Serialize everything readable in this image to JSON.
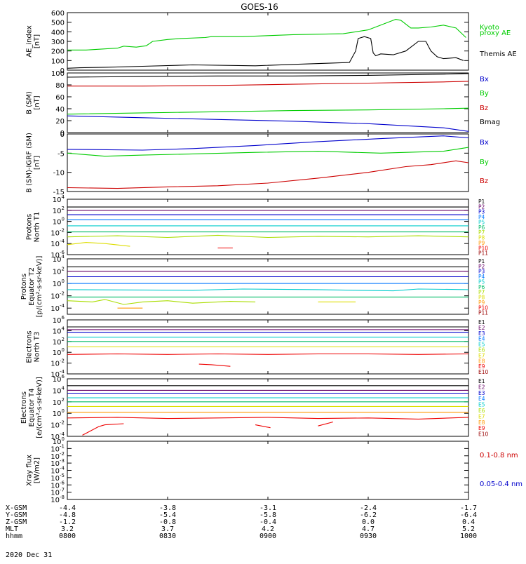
{
  "title": "GOES-16",
  "colors": {
    "black": "#000000",
    "green": "#00cc00",
    "red": "#cc0000",
    "blue": "#0000cc",
    "p1": "#000000",
    "p2": "#660066",
    "p3": "#0000cc",
    "p4": "#0077ff",
    "p5": "#00cccc",
    "p6": "#00bb66",
    "p7": "#aadd00",
    "p8": "#dddd00",
    "p9": "#ff9900",
    "p10": "#ee0000",
    "p11": "#990000"
  },
  "chart_data": [
    {
      "id": "ae",
      "type": "line",
      "ylabel_lines": [
        "AE_index",
        "[nT]"
      ],
      "ylim": [
        0,
        600
      ],
      "yticks": [
        "0",
        "100",
        "200",
        "300",
        "400",
        "500",
        "600"
      ],
      "legend": [
        "Kyoto",
        "proxy AE",
        "Themis AE"
      ],
      "series": [
        {
          "name": "Kyoto proxy AE",
          "color": "green",
          "x": [
            0,
            15,
            22,
            40,
            45,
            55,
            63,
            68,
            80,
            90,
            110,
            115,
            140,
            160,
            180,
            220,
            240,
            260,
            262,
            266,
            274,
            280,
            290,
            300,
            310,
            318
          ],
          "y": [
            210,
            210,
            215,
            230,
            250,
            240,
            255,
            300,
            320,
            330,
            340,
            350,
            350,
            360,
            370,
            380,
            420,
            520,
            530,
            520,
            440,
            440,
            450,
            470,
            440,
            340
          ]
        },
        {
          "name": "Themis AE",
          "color": "black",
          "x": [
            0,
            10,
            30,
            60,
            100,
            150,
            180,
            225,
            230,
            232,
            237,
            242,
            244,
            246,
            250,
            260,
            270,
            280,
            286,
            290,
            295,
            300,
            310,
            316
          ],
          "y": [
            20,
            25,
            30,
            40,
            55,
            45,
            60,
            80,
            200,
            330,
            350,
            330,
            180,
            150,
            170,
            160,
            200,
            300,
            300,
            200,
            140,
            120,
            130,
            100
          ]
        }
      ]
    },
    {
      "id": "bsm",
      "type": "line",
      "ylabel_lines": [
        "B (SM)",
        "[nT]"
      ],
      "ylim": [
        0,
        100
      ],
      "yticks": [
        "0",
        "20",
        "40",
        "60",
        "80",
        "100"
      ],
      "legend": [
        "Bx",
        "By",
        "Bz",
        "Bmag"
      ],
      "series": [
        {
          "name": "Bmag",
          "color": "black",
          "x": [
            0,
            60,
            120,
            180,
            240,
            300,
            320
          ],
          "y": [
            93,
            94,
            95,
            95,
            96,
            98,
            99
          ]
        },
        {
          "name": "Bx",
          "color": "blue",
          "x": [
            0,
            60,
            120,
            180,
            240,
            300,
            320
          ],
          "y": [
            28,
            25,
            22,
            19,
            15,
            8,
            2
          ]
        },
        {
          "name": "By",
          "color": "green",
          "x": [
            0,
            60,
            120,
            180,
            240,
            300,
            320
          ],
          "y": [
            31,
            33,
            35,
            37,
            38,
            40,
            41
          ]
        },
        {
          "name": "Bz",
          "color": "red",
          "x": [
            0,
            60,
            120,
            180,
            240,
            300,
            320
          ],
          "y": [
            78,
            78,
            79,
            81,
            83,
            85,
            86
          ]
        }
      ]
    },
    {
      "id": "bigrf",
      "type": "line",
      "ylabel_lines": [
        "B (SM)-IGRF (SM)",
        "[nT]"
      ],
      "ylim": [
        -15,
        0
      ],
      "yticks": [
        "-15",
        "-10",
        "-5",
        "0"
      ],
      "legend": [
        "Bx",
        "By",
        "Bz"
      ],
      "series": [
        {
          "name": "Bx",
          "color": "blue",
          "x": [
            0,
            60,
            100,
            150,
            200,
            250,
            300,
            320
          ],
          "y": [
            -4,
            -4.2,
            -3.8,
            -3,
            -2,
            -1.2,
            -0.5,
            -1
          ]
        },
        {
          "name": "By",
          "color": "green",
          "x": [
            0,
            30,
            60,
            100,
            150,
            200,
            250,
            300,
            320
          ],
          "y": [
            -5,
            -5.8,
            -5.5,
            -5.2,
            -4.8,
            -4.5,
            -5,
            -4.5,
            -3.5
          ]
        },
        {
          "name": "Bz",
          "color": "red",
          "x": [
            0,
            40,
            80,
            120,
            160,
            200,
            240,
            270,
            290,
            310,
            320
          ],
          "y": [
            -14,
            -14.2,
            -13.8,
            -13.5,
            -12.8,
            -11.5,
            -10,
            -8.5,
            -8,
            -7,
            -7.5
          ]
        }
      ]
    },
    {
      "id": "pt1",
      "type": "line",
      "scale": "log",
      "ylabel_lines": [
        "Protons",
        "North T1"
      ],
      "ylim_exp": [
        -6,
        4
      ],
      "yticks_exp": [
        -6,
        -4,
        -2,
        0,
        2,
        4
      ],
      "legend": [
        "P1",
        "P2",
        "P3",
        "P4",
        "P5",
        "P6",
        "P7",
        "P8",
        "P9",
        "P10",
        "P11"
      ],
      "series": [
        {
          "name": "P1",
          "color": "p1",
          "x": [
            0,
            320
          ],
          "y": [
            2.6,
            2.6
          ]
        },
        {
          "name": "P2",
          "color": "p2",
          "x": [
            0,
            320
          ],
          "y": [
            2.0,
            2.0
          ]
        },
        {
          "name": "P3",
          "color": "p3",
          "x": [
            0,
            320
          ],
          "y": [
            1.2,
            1.2
          ]
        },
        {
          "name": "P4",
          "color": "p4",
          "x": [
            0,
            320
          ],
          "y": [
            0.3,
            0.3
          ]
        },
        {
          "name": "P5",
          "color": "p5",
          "x": [
            0,
            320
          ],
          "y": [
            -0.8,
            -0.8
          ]
        },
        {
          "name": "P6",
          "color": "p6",
          "x": [
            0,
            320
          ],
          "y": [
            -1.9,
            -1.9
          ]
        },
        {
          "name": "P7",
          "color": "p7",
          "x": [
            0,
            40,
            80,
            120,
            160,
            200,
            240,
            280,
            320
          ],
          "y": [
            -2.8,
            -2.6,
            -2.9,
            -2.5,
            -2.9,
            -2.7,
            -2.8,
            -2.6,
            -2.8
          ]
        },
        {
          "name": "P8",
          "color": "p8",
          "x": [
            0,
            15,
            30,
            50
          ],
          "y": [
            -4.2,
            -3.8,
            -4,
            -4.5
          ]
        },
        {
          "name": "P10",
          "color": "p10",
          "x": [
            120,
            132
          ],
          "y": [
            -4.8,
            -4.8
          ]
        }
      ]
    },
    {
      "id": "pt2",
      "type": "line",
      "scale": "log",
      "ylabel_lines": [
        "Protons",
        "Equator T2",
        "[p/(cm²-s-sr-keV)]"
      ],
      "ylim_exp": [
        -5,
        4
      ],
      "yticks_exp": [
        -4,
        -2,
        0,
        2,
        4
      ],
      "legend": [
        "P1",
        "P2",
        "P3",
        "P4",
        "P5",
        "P6",
        "P7",
        "P8",
        "P9",
        "P10",
        "P11"
      ],
      "series": [
        {
          "name": "P1",
          "color": "p1",
          "x": [
            0,
            320
          ],
          "y": [
            2.7,
            2.7
          ]
        },
        {
          "name": "P2",
          "color": "p2",
          "x": [
            0,
            320
          ],
          "y": [
            2.0,
            2.0
          ]
        },
        {
          "name": "P3",
          "color": "p3",
          "x": [
            0,
            320
          ],
          "y": [
            1.1,
            1.1
          ]
        },
        {
          "name": "P4",
          "color": "p4",
          "x": [
            0,
            320
          ],
          "y": [
            0.0,
            0.0
          ]
        },
        {
          "name": "P5",
          "color": "p5",
          "x": [
            0,
            100,
            140,
            200,
            260,
            280,
            320
          ],
          "y": [
            -1.0,
            -1.1,
            -0.9,
            -1.0,
            -1.2,
            -0.9,
            -1.0
          ]
        },
        {
          "name": "P6",
          "color": "p6",
          "x": [
            0,
            320
          ],
          "y": [
            -2.2,
            -2.2
          ]
        },
        {
          "name": "P7",
          "color": "p7",
          "x": [
            0,
            20,
            30,
            45,
            60,
            80,
            100,
            130,
            150
          ],
          "y": [
            -2.8,
            -3.0,
            -2.6,
            -3.4,
            -3.0,
            -2.8,
            -3.2,
            -2.9,
            -3.0
          ]
        },
        {
          "name": "P8",
          "color": "p8",
          "x": [
            200,
            230
          ],
          "y": [
            -3.0,
            -3.0
          ]
        },
        {
          "name": "P9",
          "color": "p9",
          "x": [
            40,
            60
          ],
          "y": [
            -4.0,
            -4.0
          ]
        }
      ]
    },
    {
      "id": "et3",
      "type": "line",
      "scale": "log",
      "ylabel_lines": [
        "Electrons",
        "North T3"
      ],
      "ylim_exp": [
        -4,
        6
      ],
      "yticks_exp": [
        -4,
        -2,
        0,
        2,
        4,
        6
      ],
      "legend": [
        "E1",
        "E2",
        "E3",
        "E4",
        "E5",
        "E6",
        "E7",
        "E8",
        "E9",
        "E10"
      ],
      "series": [
        {
          "name": "E1",
          "color": "p1",
          "x": [
            0,
            320
          ],
          "y": [
            4.7,
            4.7
          ]
        },
        {
          "name": "E2",
          "color": "p2",
          "x": [
            0,
            320
          ],
          "y": [
            4.2,
            4.2
          ]
        },
        {
          "name": "E3",
          "color": "p3",
          "x": [
            0,
            320
          ],
          "y": [
            3.7,
            3.7
          ]
        },
        {
          "name": "E4",
          "color": "p5",
          "x": [
            0,
            320
          ],
          "y": [
            2.8,
            2.8
          ]
        },
        {
          "name": "E5",
          "color": "p6",
          "x": [
            0,
            320
          ],
          "y": [
            2.0,
            2.0
          ]
        },
        {
          "name": "E6",
          "color": "p8",
          "x": [
            0,
            320
          ],
          "y": [
            1.0,
            1.0
          ]
        },
        {
          "name": "E8",
          "color": "p10",
          "x": [
            0,
            40,
            80,
            120,
            160,
            200,
            240,
            280,
            320
          ],
          "y": [
            -0.4,
            -0.3,
            -0.4,
            -0.3,
            -0.4,
            -0.3,
            -0.3,
            -0.4,
            -0.3
          ]
        },
        {
          "name": "E9",
          "color": "p10",
          "x": [
            105,
            115,
            130
          ],
          "y": [
            -2.2,
            -2.3,
            -2.6
          ]
        }
      ]
    },
    {
      "id": "et4",
      "type": "line",
      "scale": "log",
      "ylabel_lines": [
        "Electrons",
        "Equator T4",
        "[e/(cm²-s-sr-keV)]"
      ],
      "ylim_exp": [
        -4,
        6
      ],
      "yticks_exp": [
        -4,
        -2,
        0,
        2,
        4,
        6
      ],
      "legend": [
        "E1",
        "E2",
        "E3",
        "E4",
        "E5",
        "E6",
        "E7",
        "E8",
        "E9",
        "E10"
      ],
      "series": [
        {
          "name": "E1",
          "color": "p1",
          "x": [
            0,
            320
          ],
          "y": [
            4.8,
            4.8
          ]
        },
        {
          "name": "E2",
          "color": "p2",
          "x": [
            0,
            320
          ],
          "y": [
            4.0,
            4.0
          ]
        },
        {
          "name": "E3",
          "color": "p3",
          "x": [
            0,
            320
          ],
          "y": [
            3.5,
            3.5
          ]
        },
        {
          "name": "E4",
          "color": "p5",
          "x": [
            0,
            320
          ],
          "y": [
            2.7,
            2.7
          ]
        },
        {
          "name": "E5",
          "color": "p6",
          "x": [
            0,
            320
          ],
          "y": [
            2.0,
            2.0
          ]
        },
        {
          "name": "E6",
          "color": "p8",
          "x": [
            0,
            320
          ],
          "y": [
            1.2,
            1.2
          ]
        },
        {
          "name": "E7",
          "color": "p9",
          "x": [
            0,
            320
          ],
          "y": [
            0.2,
            0.2
          ]
        },
        {
          "name": "E8",
          "color": "p10",
          "x": [
            0,
            40,
            80,
            120,
            160,
            200,
            240,
            280,
            320
          ],
          "y": [
            -0.8,
            -0.7,
            -0.9,
            -0.8,
            -0.7,
            -0.9,
            -0.8,
            -1.0,
            -0.7
          ]
        },
        {
          "name": "E9",
          "color": "p10",
          "x": [
            12,
            25,
            30,
            45
          ],
          "y": [
            -3.8,
            -2.3,
            -2.0,
            -1.8
          ]
        },
        {
          "name": "E10",
          "color": "p10",
          "x": [
            150,
            162
          ],
          "y": [
            -2.0,
            -2.5
          ]
        },
        {
          "name": "E10b",
          "color": "p10",
          "x": [
            200,
            212
          ],
          "y": [
            -2.2,
            -1.5
          ]
        }
      ]
    },
    {
      "id": "xray",
      "type": "line",
      "scale": "log",
      "ylabel_lines": [
        "Xray flux",
        "[W/m2]"
      ],
      "ylim_exp": [
        -8,
        0
      ],
      "yticks_exp": [
        -8,
        -7,
        -6,
        -5,
        -4,
        -3,
        -2,
        -1,
        0
      ],
      "legend": [
        "0.1-0.8 nm",
        "0.05-0.4 nm"
      ],
      "series": []
    }
  ],
  "xaxis": {
    "xlim": [
      0,
      320
    ],
    "tick_positions": [
      0,
      80,
      160,
      240,
      320
    ],
    "row_labels": [
      "X-GSM",
      "Y-GSM",
      "Z-GSM",
      "MLT",
      "hhmm"
    ],
    "columns": [
      [
        "-4.4",
        "-4.8",
        "-1.2",
        "3.2",
        "0800"
      ],
      [
        "-3.8",
        "-5.4",
        "-0.8",
        "3.7",
        "0830"
      ],
      [
        "-3.1",
        "-5.8",
        "-0.4",
        "4.2",
        "0900"
      ],
      [
        "-2.4",
        "-6.2",
        "0.0",
        "4.7",
        "0930"
      ],
      [
        "-1.7",
        "-6.4",
        "0.4",
        "5.2",
        "1000"
      ]
    ],
    "date": "2020 Dec 31"
  }
}
